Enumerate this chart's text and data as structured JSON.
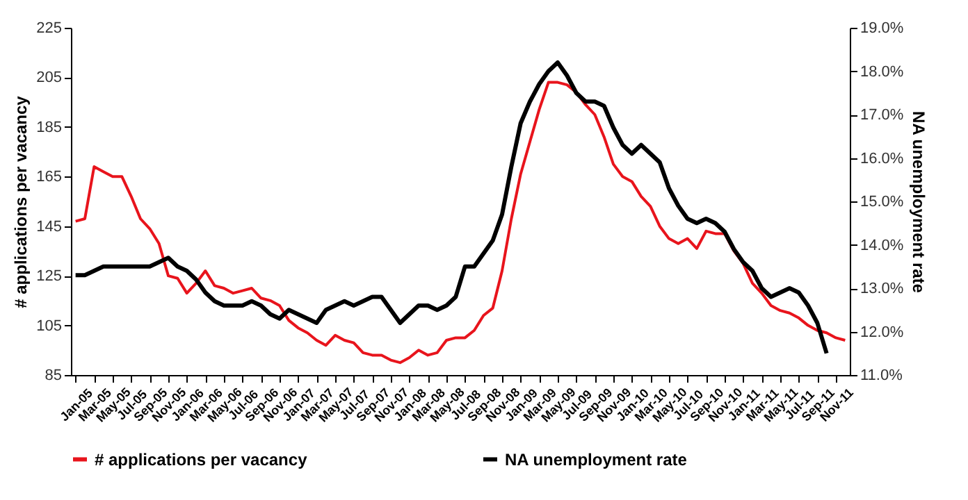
{
  "chart_data": {
    "type": "line",
    "ylabel": "# applications per vacancy",
    "y2label": "NA unemployment rate",
    "categories": [
      "Jan-05",
      null,
      "Mar-05",
      null,
      "May-05",
      null,
      "Jul-05",
      null,
      "Sep-05",
      null,
      "Nov-05",
      null,
      "Jan-06",
      null,
      "Mar-06",
      null,
      "May-06",
      null,
      "Jul-06",
      null,
      "Sep-06",
      null,
      "Nov-06",
      null,
      "Jan-07",
      null,
      "Mar-07",
      null,
      "May-07",
      null,
      "Jul-07",
      null,
      "Sep-07",
      null,
      "Nov-07",
      null,
      "Jan-08",
      null,
      "Mar-08",
      null,
      "May-08",
      null,
      "Jul-08",
      null,
      "Sep-08",
      null,
      "Nov-08",
      null,
      "Jan-09",
      null,
      "Mar-09",
      null,
      "May-09",
      null,
      "Jul-09",
      null,
      "Sep-09",
      null,
      "Nov-09",
      null,
      "Jan-10",
      null,
      "Mar-10",
      null,
      "May-10",
      null,
      "Jul-10",
      null,
      "Sep-10",
      null,
      "Nov-10",
      null,
      "Jan-11",
      null,
      "Mar-11",
      null,
      "May-11",
      null,
      "Jul-11",
      null,
      "Sep-11",
      null,
      "Nov-11",
      null
    ],
    "series": [
      {
        "name": "# applications per vacancy",
        "color": "#e8141c",
        "values": [
          147,
          148,
          169,
          167,
          165,
          165,
          157,
          148,
          144,
          138,
          125,
          124,
          118,
          122,
          127,
          121,
          120,
          118,
          119,
          120,
          116,
          115,
          113,
          107,
          104,
          102,
          99,
          97,
          101,
          99,
          98,
          94,
          93,
          93,
          91,
          90,
          92,
          95,
          93,
          94,
          99,
          100,
          100,
          103,
          109,
          112,
          127,
          148,
          166,
          179,
          192,
          203,
          203,
          202,
          199,
          194,
          190,
          181,
          170,
          165,
          163,
          157,
          153,
          145,
          140,
          138,
          140,
          136,
          143,
          142,
          142,
          135,
          130,
          122,
          118,
          113,
          111,
          110,
          108,
          105,
          103,
          102,
          100,
          99
        ]
      },
      {
        "name": "NA unemployment rate",
        "color": "#000000",
        "axis": "y2",
        "values": [
          13.3,
          13.3,
          13.4,
          13.5,
          13.5,
          13.5,
          13.5,
          13.5,
          13.5,
          13.6,
          13.7,
          13.5,
          13.4,
          13.2,
          12.9,
          12.7,
          12.6,
          12.6,
          12.6,
          12.7,
          12.6,
          12.4,
          12.3,
          12.5,
          12.4,
          12.3,
          12.2,
          12.5,
          12.6,
          12.7,
          12.6,
          12.7,
          12.8,
          12.8,
          12.5,
          12.2,
          12.4,
          12.6,
          12.6,
          12.5,
          12.6,
          12.8,
          13.5,
          13.5,
          13.8,
          14.1,
          14.7,
          15.8,
          16.8,
          17.3,
          17.7,
          18.0,
          18.2,
          17.9,
          17.5,
          17.3,
          17.3,
          17.2,
          16.7,
          16.3,
          16.1,
          16.3,
          16.1,
          15.9,
          15.3,
          14.9,
          14.6,
          14.5,
          14.6,
          14.5,
          14.3,
          13.9,
          13.6,
          13.4,
          13.0,
          12.8,
          12.9,
          13.0,
          12.9,
          12.6,
          12.2,
          11.5,
          null,
          null
        ]
      }
    ],
    "ylim": [
      85,
      225
    ],
    "yticks": [
      85,
      105,
      125,
      145,
      165,
      185,
      205,
      225
    ],
    "y2lim": [
      11,
      19
    ],
    "y2ticks": [
      {
        "value": 11,
        "label": "11.0%"
      },
      {
        "value": 12,
        "label": "12.0%"
      },
      {
        "value": 13,
        "label": "13.0%"
      },
      {
        "value": 14,
        "label": "14.0%"
      },
      {
        "value": 15,
        "label": "15.0%"
      },
      {
        "value": 16,
        "label": "16.0%"
      },
      {
        "value": 17,
        "label": "17.0%"
      },
      {
        "value": 18,
        "label": "18.0%"
      },
      {
        "value": 19,
        "label": "19.0%"
      }
    ],
    "legend": "bottom",
    "grid": false
  }
}
